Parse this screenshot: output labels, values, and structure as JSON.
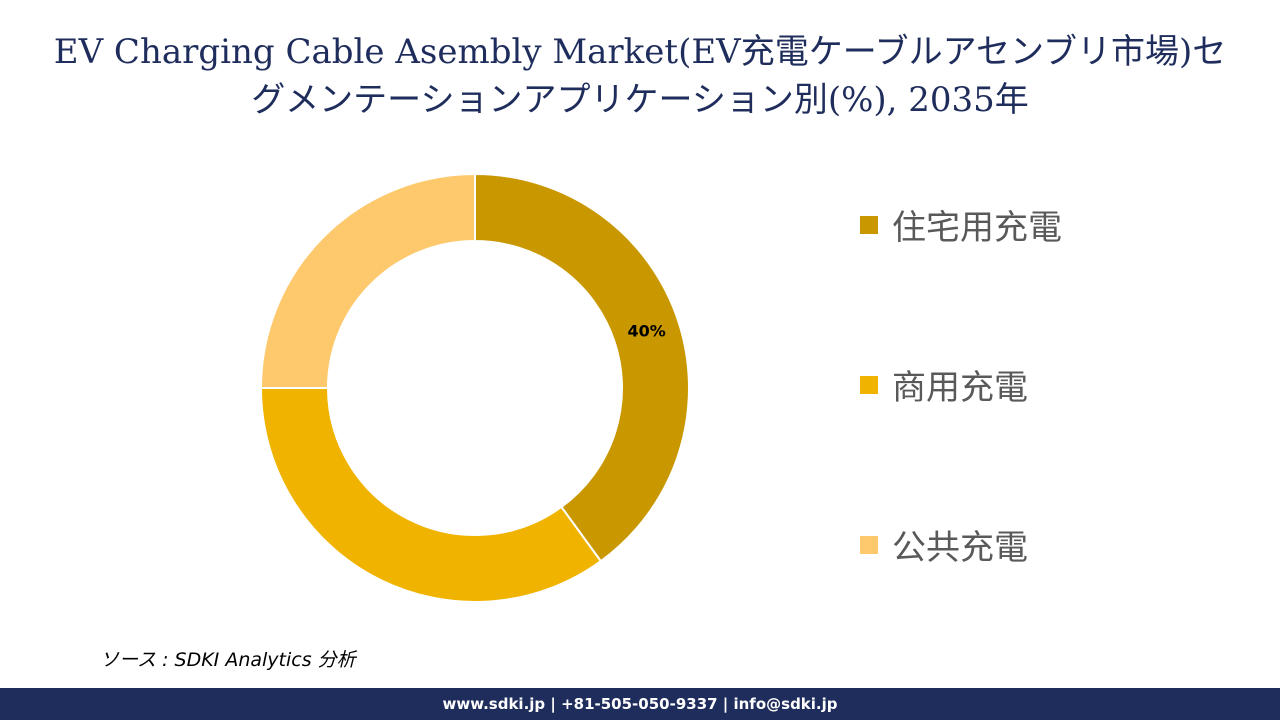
{
  "title_line1": "EV Charging Cable Asembly Market(EV充電ケーブルアセンブリ市場)セ",
  "title_line2": "グメンテーションアプリケーション別(%), 2035年",
  "source": "ソース : SDKI Analytics 分析",
  "footer": "www.sdki.jp | +81-505-050-9337 | info@sdki.jp",
  "colors": {
    "title": "#1f2d5c",
    "footer_bg": "#1f2d5c",
    "legend_text": "#595959"
  },
  "chart_data": {
    "type": "donut",
    "categories": [
      "住宅用充電",
      "商用充電",
      "公共充電"
    ],
    "values": [
      40,
      35,
      25
    ],
    "unit": "%",
    "colors": [
      "#c99700",
      "#f0b400",
      "#fdc96c"
    ],
    "data_labels": [
      "40%",
      "",
      ""
    ],
    "legend_position": "right"
  }
}
